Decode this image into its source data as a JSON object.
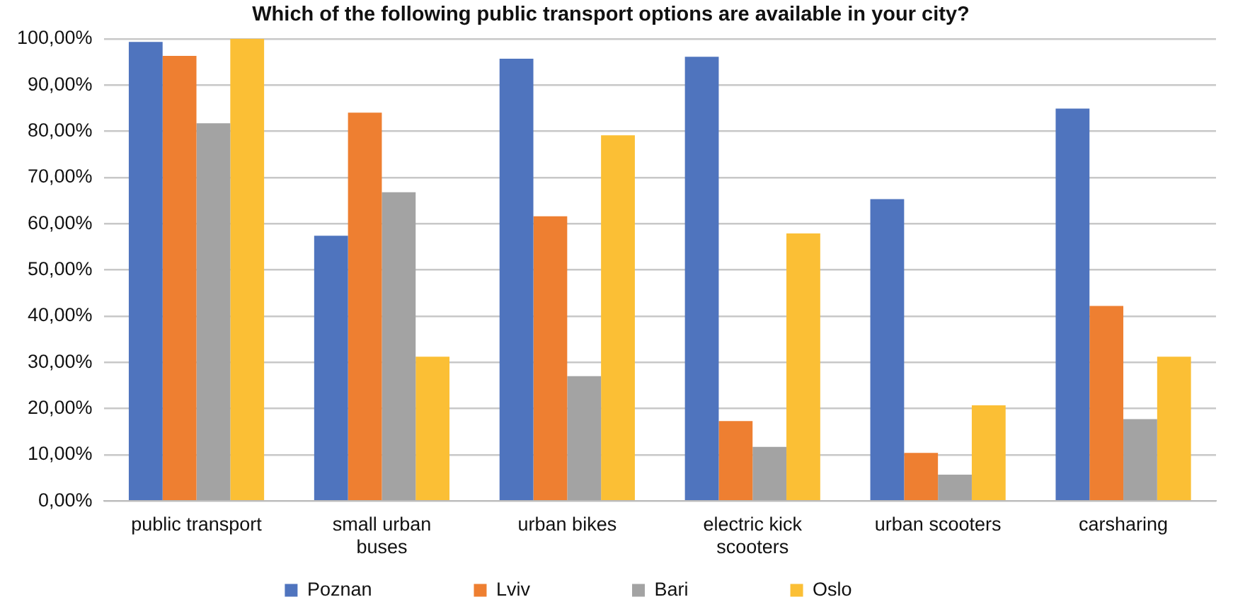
{
  "chart_data": {
    "type": "bar",
    "title": "Which of the following public transport options are available in your city?",
    "categories": [
      "public transport",
      "small urban buses",
      "urban bikes",
      "electric kick scooters",
      "urban scooters",
      "carsharing"
    ],
    "series": [
      {
        "name": "Poznan",
        "color": "#4f74be",
        "values": [
          99.3,
          57.4,
          95.7,
          96.1,
          65.3,
          84.9
        ]
      },
      {
        "name": "Lviv",
        "color": "#ee7f31",
        "values": [
          96.3,
          84.0,
          61.6,
          17.3,
          10.4,
          42.2
        ]
      },
      {
        "name": "Bari",
        "color": "#a3a3a3",
        "values": [
          81.7,
          66.8,
          27.0,
          11.7,
          5.7,
          17.7
        ]
      },
      {
        "name": "Oslo",
        "color": "#fbbf35",
        "values": [
          100,
          31.2,
          79.1,
          57.9,
          20.7,
          31.2
        ]
      }
    ],
    "ylim": [
      0,
      100
    ],
    "yticks": [
      {
        "value": 0,
        "label": "0,00%"
      },
      {
        "value": 10,
        "label": "10,00%"
      },
      {
        "value": 20,
        "label": "20,00%"
      },
      {
        "value": 30,
        "label": "30,00%"
      },
      {
        "value": 40,
        "label": "40,00%"
      },
      {
        "value": 50,
        "label": "50,00%"
      },
      {
        "value": 60,
        "label": "60,00%"
      },
      {
        "value": 70,
        "label": "70,00%"
      },
      {
        "value": 80,
        "label": "80,00%"
      },
      {
        "value": 90,
        "label": "90,00%"
      },
      {
        "value": 100,
        "label": "100,00%"
      }
    ],
    "grid": "y",
    "legend": "bottom"
  }
}
